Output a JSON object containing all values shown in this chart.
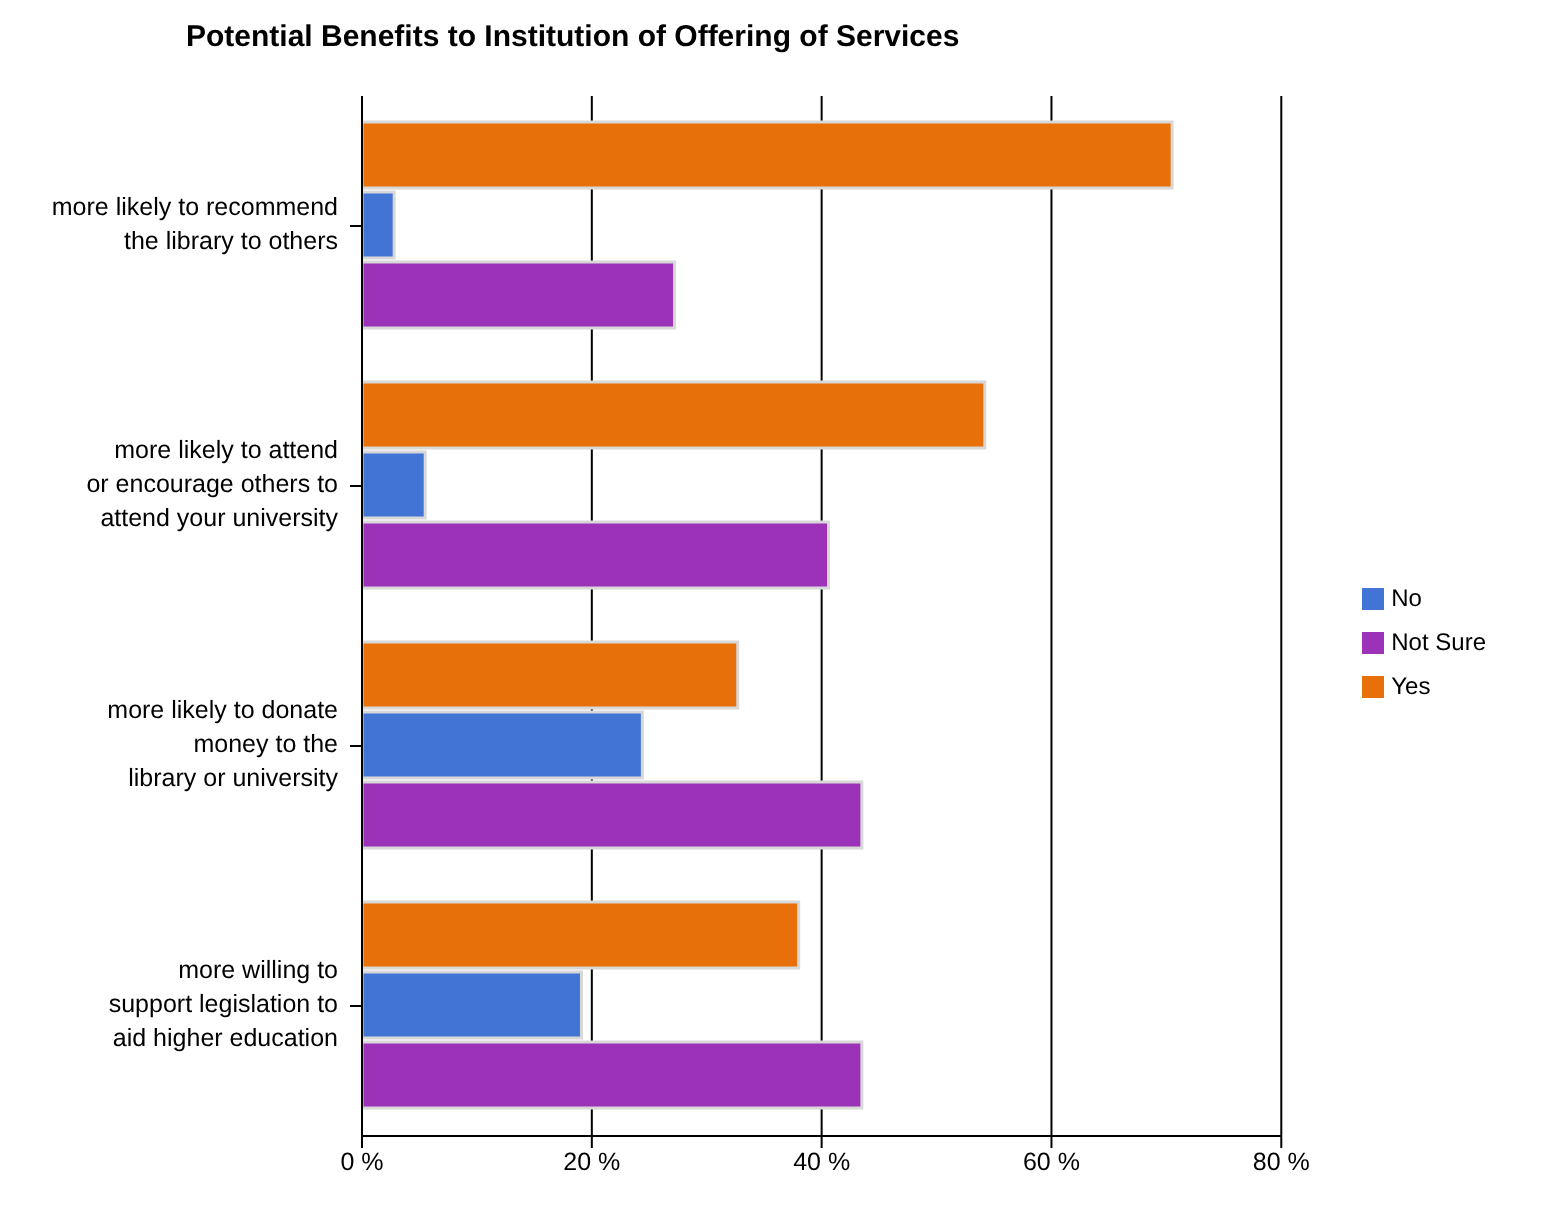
{
  "chart_data": {
    "type": "bar",
    "orientation": "horizontal",
    "title": "Potential Benefits to Institution of Offering of Services",
    "categories": [
      "more likely to recommend\nthe library to others",
      "more likely to attend\nor encourage others to\nattend your university",
      "more likely to donate\nmoney to the\nlibrary or university",
      "more willing to\nsupport legislation to\naid higher education"
    ],
    "series": [
      {
        "name": "Yes",
        "color": "#e8700a",
        "values": [
          70.5,
          54.2,
          32.7,
          38
        ]
      },
      {
        "name": "No",
        "color": "#4274d6",
        "values": [
          2.8,
          5.5,
          24.4,
          19.1
        ]
      },
      {
        "name": "Not Sure",
        "color": "#9b32b8",
        "values": [
          27.2,
          40.6,
          43.5,
          43.5
        ]
      }
    ],
    "xlim": [
      0,
      80
    ],
    "xticks": [
      {
        "value": 0,
        "label": "0 %"
      },
      {
        "value": 20,
        "label": "20 %"
      },
      {
        "value": 40,
        "label": "40 %"
      },
      {
        "value": 60,
        "label": "60 %"
      },
      {
        "value": 80,
        "label": "80 %"
      }
    ],
    "grid": "x",
    "legend": "right"
  }
}
